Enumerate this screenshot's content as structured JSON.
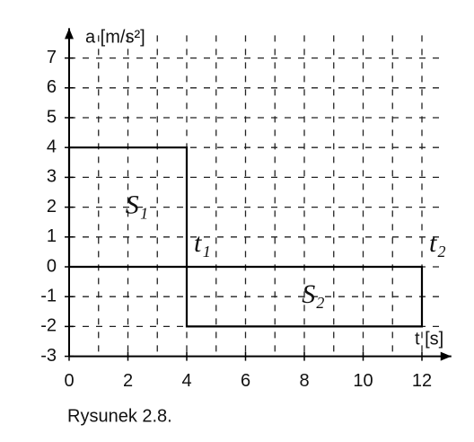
{
  "chart_data": {
    "type": "area",
    "xlabel": "t [s]",
    "ylabel": "a [m/s²]",
    "series": [
      {
        "name": "S₁",
        "color": "#000000",
        "x": [
          0,
          4
        ],
        "values": [
          4,
          4
        ]
      },
      {
        "name": "S₂",
        "color": "#000000",
        "x": [
          4,
          12
        ],
        "values": [
          -2,
          -2
        ]
      }
    ],
    "annotations": [
      "t₁",
      "t₂"
    ],
    "xlim": [
      0,
      13
    ],
    "ylim": [
      -3,
      8
    ],
    "xticks": [
      0,
      2,
      4,
      6,
      8,
      10,
      12
    ],
    "xminorticks": [
      1,
      3,
      5,
      7,
      9,
      11
    ],
    "yticks": [
      -3,
      -2,
      -1,
      0,
      1,
      2,
      3,
      4,
      5,
      6,
      7
    ],
    "grid": true,
    "caption": "Rysunek 2.8."
  }
}
